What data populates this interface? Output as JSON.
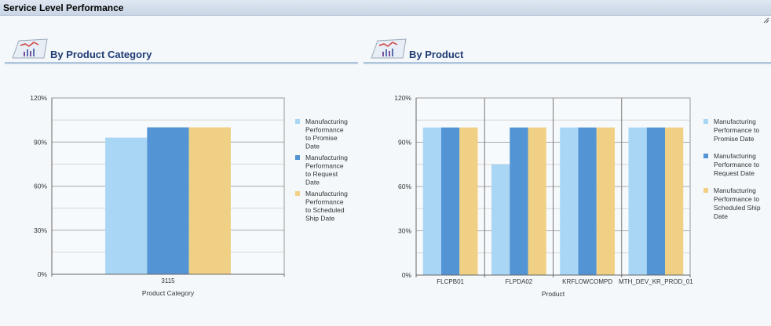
{
  "window": {
    "title": "Service Level Performance"
  },
  "panels": [
    {
      "title": "By Product Category"
    },
    {
      "title": "By Product"
    }
  ],
  "colors": {
    "promise": "#a9d6f5",
    "request": "#5294d4",
    "scheduled": "#f0d084",
    "grid": "#bdbdbd",
    "axis": "#666666"
  },
  "chart_data": [
    {
      "type": "bar",
      "title": "By Product Category",
      "xlabel": "Product Category",
      "ylabel": "",
      "ylim": [
        0,
        120
      ],
      "yticks": [
        "0%",
        "30%",
        "60%",
        "90%",
        "120%"
      ],
      "categories": [
        "3115"
      ],
      "legend_position": "right",
      "series": [
        {
          "name": "Manufacturing Performance to Promise Date",
          "legend_lines": [
            "Manufacturing",
            "Performance",
            "to Promise",
            "Date"
          ],
          "values": [
            93
          ]
        },
        {
          "name": "Manufacturing Performance to Request Date",
          "legend_lines": [
            "Manufacturing",
            "Performance",
            "to Request",
            "Date"
          ],
          "values": [
            100
          ]
        },
        {
          "name": "Manufacturing Performance to Scheduled Ship Date",
          "legend_lines": [
            "Manufacturing",
            "Performance",
            "to Scheduled",
            "Ship Date"
          ],
          "values": [
            100
          ]
        }
      ]
    },
    {
      "type": "bar",
      "title": "By Product",
      "xlabel": "Product",
      "ylabel": "",
      "ylim": [
        0,
        120
      ],
      "yticks": [
        "0%",
        "30%",
        "60%",
        "90%",
        "120%"
      ],
      "categories": [
        "FLCPB01",
        "FLPDA02",
        "KRFLOWCOMPD",
        "MTH_DEV_KR_PROD_01"
      ],
      "legend_position": "right",
      "series": [
        {
          "name": "Manufacturing Performance to Promise Date",
          "legend_lines": [
            "Manufacturing",
            "Performance to",
            "Promise Date"
          ],
          "values": [
            100,
            75,
            100,
            100
          ]
        },
        {
          "name": "Manufacturing Performance to Request Date",
          "legend_lines": [
            "Manufacturing",
            "Performance to",
            "Request Date"
          ],
          "values": [
            100,
            100,
            100,
            100
          ]
        },
        {
          "name": "Manufacturing Performance to Scheduled Ship Date",
          "legend_lines": [
            "Manufacturing",
            "Performance to",
            "Scheduled Ship",
            "Date"
          ],
          "values": [
            100,
            100,
            100,
            100
          ]
        }
      ]
    }
  ]
}
